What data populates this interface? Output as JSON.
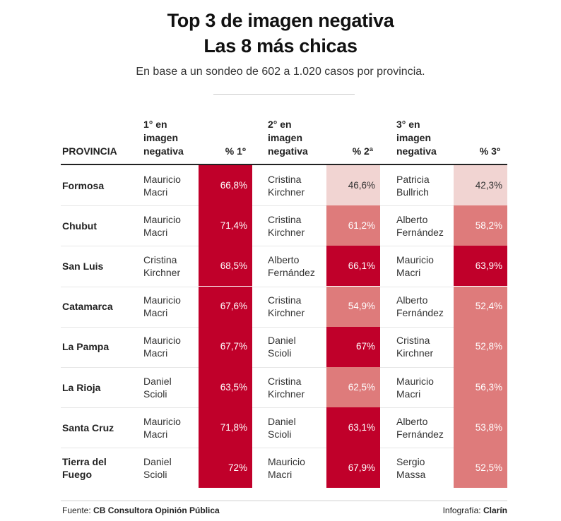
{
  "header": {
    "title_line1": "Top 3 de imagen negativa",
    "title_line2": "Las 8 más chicas",
    "subtitle": "En base a un sondeo de 602 a 1.020 casos por provincia."
  },
  "columns": {
    "provincia": "PROVINCIA",
    "first_line1": "1° en",
    "first_line2": "imagen",
    "first_line3": "negativa",
    "pct1": "% 1º",
    "second_line1": "2° en",
    "second_line2": "imagen",
    "second_line3": "negativa",
    "pct2": "% 2ª",
    "third_line1": "3° en",
    "third_line2": "imagen",
    "third_line3": "negativa",
    "pct3": "% 3º"
  },
  "footer": {
    "source_label": "Fuente:",
    "source_value": "CB Consultora Opinión Pública",
    "credit_label": "Infografía:",
    "credit_value": "Clarín"
  },
  "colors": {
    "high": "#c0002a",
    "mid": "#de7b7b",
    "low": "#f1d4d2",
    "text_light": "#ffffff",
    "text_dark": "#333333"
  },
  "chart_data": {
    "type": "table",
    "title": "Top 3 de imagen negativa",
    "subtitle": "Las 8 más chicas",
    "rows": [
      {
        "province_lines": [
          "Formosa"
        ],
        "first": {
          "name_lines": [
            "Mauricio",
            "Macri"
          ],
          "label": "66,8%",
          "value": 66.8
        },
        "second": {
          "name_lines": [
            "Cristina",
            "Kirchner"
          ],
          "label": "46,6%",
          "value": 46.6
        },
        "third": {
          "name_lines": [
            "Patricia",
            "Bullrich"
          ],
          "label": "42,3%",
          "value": 42.3
        }
      },
      {
        "province_lines": [
          "Chubut"
        ],
        "first": {
          "name_lines": [
            "Mauricio",
            "Macri"
          ],
          "label": "71,4%",
          "value": 71.4
        },
        "second": {
          "name_lines": [
            "Cristina",
            "Kirchner"
          ],
          "label": "61,2%",
          "value": 61.2
        },
        "third": {
          "name_lines": [
            "Alberto",
            "Fernández"
          ],
          "label": "58,2%",
          "value": 58.2
        }
      },
      {
        "province_lines": [
          "San Luis"
        ],
        "first": {
          "name_lines": [
            "Cristina",
            "Kirchner"
          ],
          "label": "68,5%",
          "value": 68.5
        },
        "second": {
          "name_lines": [
            "Alberto",
            "Fernández"
          ],
          "label": "66,1%",
          "value": 66.1
        },
        "third": {
          "name_lines": [
            "Mauricio",
            "Macri"
          ],
          "label": "63,9%",
          "value": 63.9
        }
      },
      {
        "province_lines": [
          "Catamarca"
        ],
        "first": {
          "name_lines": [
            "Mauricio",
            "Macri"
          ],
          "label": "67,6%",
          "value": 67.6
        },
        "second": {
          "name_lines": [
            "Cristina",
            "Kirchner"
          ],
          "label": "54,9%",
          "value": 54.9
        },
        "third": {
          "name_lines": [
            "Alberto",
            "Fernández"
          ],
          "label": "52,4%",
          "value": 52.4
        }
      },
      {
        "province_lines": [
          "La Pampa"
        ],
        "first": {
          "name_lines": [
            "Mauricio",
            "Macri"
          ],
          "label": "67,7%",
          "value": 67.7
        },
        "second": {
          "name_lines": [
            "Daniel",
            "Scioli"
          ],
          "label": "67%",
          "value": 67
        },
        "third": {
          "name_lines": [
            "Cristina",
            "Kirchner"
          ],
          "label": "52,8%",
          "value": 52.8
        }
      },
      {
        "province_lines": [
          "La Rioja"
        ],
        "first": {
          "name_lines": [
            "Daniel",
            "Scioli"
          ],
          "label": "63,5%",
          "value": 63.5
        },
        "second": {
          "name_lines": [
            "Cristina",
            "Kirchner"
          ],
          "label": "62,5%",
          "value": 62.5
        },
        "third": {
          "name_lines": [
            "Mauricio",
            "Macri"
          ],
          "label": "56,3%",
          "value": 56.3
        }
      },
      {
        "province_lines": [
          "Santa Cruz"
        ],
        "first": {
          "name_lines": [
            "Mauricio",
            "Macri"
          ],
          "label": "71,8%",
          "value": 71.8
        },
        "second": {
          "name_lines": [
            "Daniel",
            "Scioli"
          ],
          "label": "63,1%",
          "value": 63.1
        },
        "third": {
          "name_lines": [
            "Alberto",
            "Fernández"
          ],
          "label": "53,8%",
          "value": 53.8
        }
      },
      {
        "province_lines": [
          "Tierra del",
          "Fuego"
        ],
        "first": {
          "name_lines": [
            "Daniel",
            "Scioli"
          ],
          "label": "72%",
          "value": 72
        },
        "second": {
          "name_lines": [
            "Mauricio",
            "Macri"
          ],
          "label": "67,9%",
          "value": 67.9
        },
        "third": {
          "name_lines": [
            "Sergio",
            "Massa"
          ],
          "label": "52,5%",
          "value": 52.5
        }
      }
    ]
  }
}
